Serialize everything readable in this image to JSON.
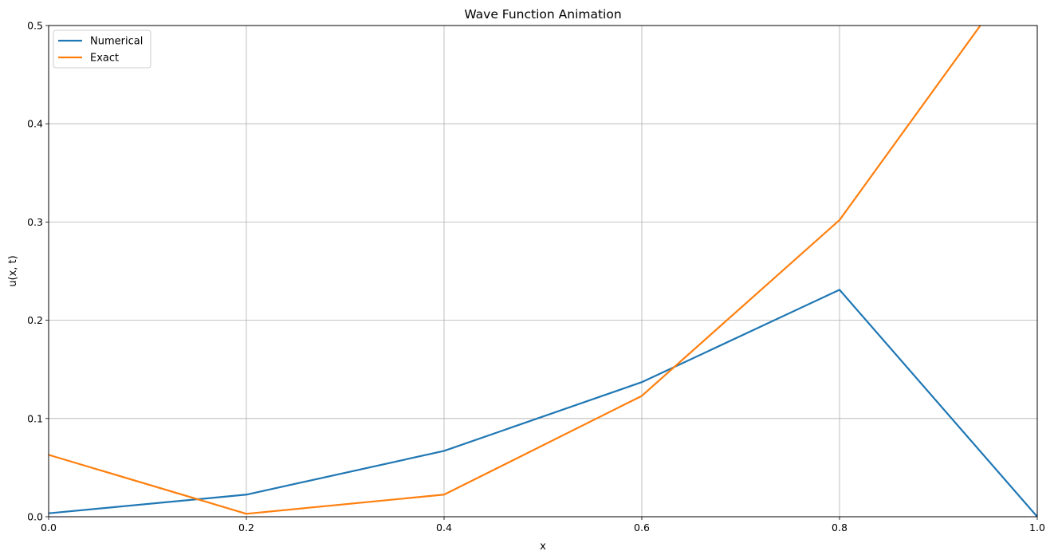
{
  "chart_data": {
    "type": "line",
    "title": "Wave Function Animation",
    "xlabel": "x",
    "ylabel": "u(x, t)",
    "xlim": [
      0.0,
      1.0
    ],
    "ylim": [
      0.0,
      0.5
    ],
    "xticks": [
      "0.0",
      "0.2",
      "0.4",
      "0.6",
      "0.8",
      "1.0"
    ],
    "yticks": [
      "0.0",
      "0.1",
      "0.2",
      "0.3",
      "0.4",
      "0.5"
    ],
    "xtick_values": [
      0.0,
      0.2,
      0.4,
      0.6,
      0.8,
      1.0
    ],
    "ytick_values": [
      0.0,
      0.1,
      0.2,
      0.3,
      0.4,
      0.5
    ],
    "grid": true,
    "legend_position": "top-left",
    "series": [
      {
        "name": "Numerical",
        "color": "#1f77b4",
        "x": [
          0.0,
          0.2,
          0.4,
          0.6,
          0.8,
          1.0
        ],
        "y": [
          0.0035,
          0.0225,
          0.067,
          0.137,
          0.231,
          0.0
        ]
      },
      {
        "name": "Exact",
        "color": "#ff7f0e",
        "x": [
          0.0,
          0.2,
          0.4,
          0.6,
          0.8,
          1.0
        ],
        "y": [
          0.063,
          0.003,
          0.0225,
          0.123,
          0.302,
          0.58
        ]
      }
    ]
  }
}
